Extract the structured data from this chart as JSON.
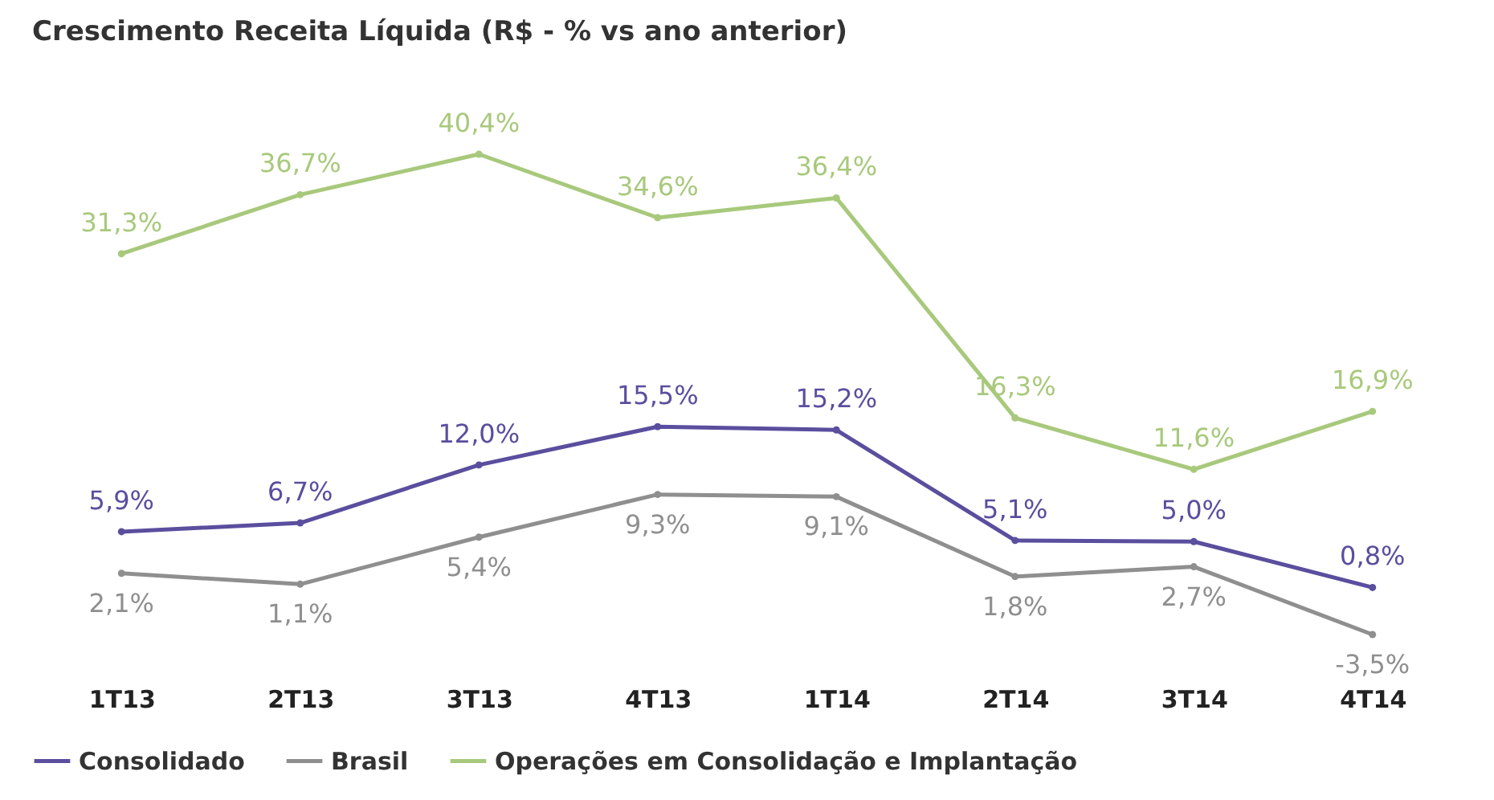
{
  "chart_data": {
    "type": "line",
    "title": "Crescimento Receita Líquida (R$ - % vs ano anterior)",
    "categories": [
      "1T13",
      "2T13",
      "3T13",
      "4T13",
      "1T14",
      "2T14",
      "3T14",
      "4T14"
    ],
    "series": [
      {
        "name": "Consolidado",
        "color": "#5a4e9e",
        "values": [
          5.9,
          6.7,
          12.0,
          15.5,
          15.2,
          5.1,
          5.0,
          0.8
        ],
        "value_labels": [
          "5,9%",
          "6,7%",
          "12,0%",
          "15,5%",
          "15,2%",
          "5,1%",
          "5,0%",
          "0,8%"
        ]
      },
      {
        "name": "Brasil",
        "color": "#8f8f8f",
        "values": [
          2.1,
          1.1,
          5.4,
          9.3,
          9.1,
          1.8,
          2.7,
          -3.5
        ],
        "value_labels": [
          "2,1%",
          "1,1%",
          "5,4%",
          "9,3%",
          "9,1%",
          "1,8%",
          "2,7%",
          "-3,5%"
        ]
      },
      {
        "name": "Operações em Consolidação e Implantação",
        "color": "#a8c97c",
        "values": [
          31.3,
          36.7,
          40.4,
          34.6,
          36.4,
          16.3,
          11.6,
          16.9
        ],
        "value_labels": [
          "31,3%",
          "36,7%",
          "40,4%",
          "34,6%",
          "36,4%",
          "16,3%",
          "11,6%",
          "16,9%"
        ]
      }
    ],
    "legend": "bottom",
    "grid": false,
    "marker": "circle",
    "line_style": "solid",
    "tick_labels": "x"
  }
}
